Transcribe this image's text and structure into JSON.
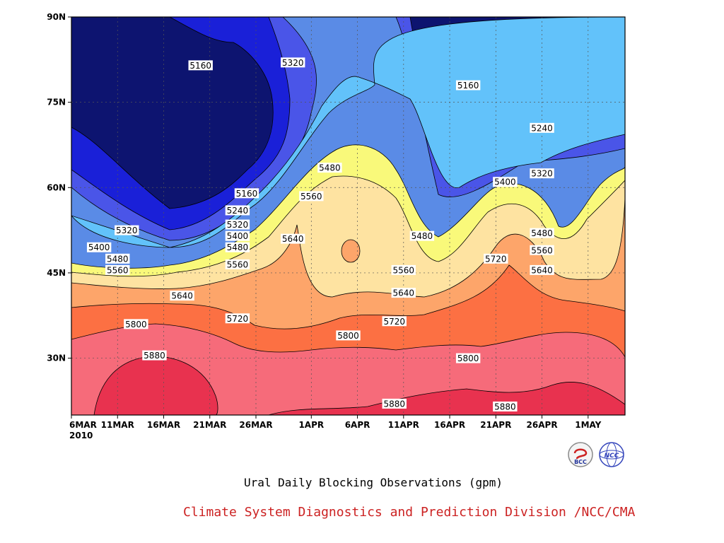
{
  "chart_data": {
    "type": "heatmap",
    "subtype": "filled contour (latitude-time Hovmoller)",
    "title": "Ural Daily Blocking Observations (gpm)",
    "credit": "Climate System Diagnostics and Prediction Division /NCC/CMA",
    "x_ticks": [
      "6MAR",
      "11MAR",
      "16MAR",
      "21MAR",
      "26MAR",
      "1APR",
      "6APR",
      "11APR",
      "16APR",
      "21APR",
      "26APR",
      "1MAY"
    ],
    "x_year_label": "2010",
    "y_ticks": [
      "30N",
      "45N",
      "60N",
      "75N",
      "90N"
    ],
    "xlim": [
      "2010-03-06",
      "2010-05-05"
    ],
    "ylim": [
      20,
      90
    ],
    "contour_levels": [
      5160,
      5240,
      5320,
      5400,
      5480,
      5560,
      5640,
      5720,
      5800,
      5880
    ],
    "contour_labels": [
      {
        "value": "5160",
        "date": "2010-03-20",
        "lat": 81.5
      },
      {
        "value": "5320",
        "date": "2010-03-30",
        "lat": 82
      },
      {
        "value": "5160",
        "date": "2010-04-18",
        "lat": 78
      },
      {
        "value": "5240",
        "date": "2010-04-26",
        "lat": 70.5
      },
      {
        "value": "5480",
        "date": "2010-04-03",
        "lat": 63.5
      },
      {
        "value": "5320",
        "date": "2010-04-26",
        "lat": 62.5
      },
      {
        "value": "5400",
        "date": "2010-04-22",
        "lat": 61
      },
      {
        "value": "5560",
        "date": "2010-04-01",
        "lat": 58.5
      },
      {
        "value": "5160",
        "date": "2010-03-25",
        "lat": 59
      },
      {
        "value": "5240",
        "date": "2010-03-24",
        "lat": 56
      },
      {
        "value": "5320",
        "date": "2010-03-24",
        "lat": 53.5
      },
      {
        "value": "5320",
        "date": "2010-03-12",
        "lat": 52.5
      },
      {
        "value": "5400",
        "date": "2010-03-24",
        "lat": 51.5
      },
      {
        "value": "5480",
        "date": "2010-04-26",
        "lat": 52
      },
      {
        "value": "5480",
        "date": "2010-04-13",
        "lat": 51.5
      },
      {
        "value": "5640",
        "date": "2010-03-30",
        "lat": 51
      },
      {
        "value": "5400",
        "date": "2010-03-09",
        "lat": 49.5
      },
      {
        "value": "5480",
        "date": "2010-03-24",
        "lat": 49.5
      },
      {
        "value": "5560",
        "date": "2010-04-26",
        "lat": 49
      },
      {
        "value": "5720",
        "date": "2010-04-21",
        "lat": 47.5
      },
      {
        "value": "5480",
        "date": "2010-03-11",
        "lat": 47.5
      },
      {
        "value": "5560",
        "date": "2010-03-24",
        "lat": 46.5
      },
      {
        "value": "5560",
        "date": "2010-03-11",
        "lat": 45.5
      },
      {
        "value": "5560",
        "date": "2010-04-11",
        "lat": 45.5
      },
      {
        "value": "5640",
        "date": "2010-04-26",
        "lat": 45.5
      },
      {
        "value": "5640",
        "date": "2010-04-11",
        "lat": 41.5
      },
      {
        "value": "5640",
        "date": "2010-03-18",
        "lat": 41
      },
      {
        "value": "5720",
        "date": "2010-03-24",
        "lat": 37
      },
      {
        "value": "5720",
        "date": "2010-04-10",
        "lat": 36.5
      },
      {
        "value": "5800",
        "date": "2010-03-13",
        "lat": 36
      },
      {
        "value": "5800",
        "date": "2010-04-05",
        "lat": 34
      },
      {
        "value": "5880",
        "date": "2010-03-15",
        "lat": 30.5
      },
      {
        "value": "5800",
        "date": "2010-04-18",
        "lat": 30
      },
      {
        "value": "5880",
        "date": "2010-04-10",
        "lat": 22
      },
      {
        "value": "5880",
        "date": "2010-04-22",
        "lat": 21.5
      }
    ],
    "fill_colors": {
      "below_5160": "#0d1470",
      "5160_5240": "#1a20d8",
      "5240_5320": "#4a55e8",
      "5320_5400": "#5a8be6",
      "5400_5480": "#62c2fa",
      "5480_5560": "#f9f97a",
      "5560_5640": "#fee3a1",
      "5640_5720": "#fda56a",
      "5720_5800": "#fc7043",
      "5800_5880": "#f66b7a",
      "above_5880": "#e8324f"
    }
  },
  "logos": {
    "left": {
      "name": "BCC",
      "text": "BCC"
    },
    "right": {
      "name": "NCC",
      "text": "NCC"
    }
  }
}
